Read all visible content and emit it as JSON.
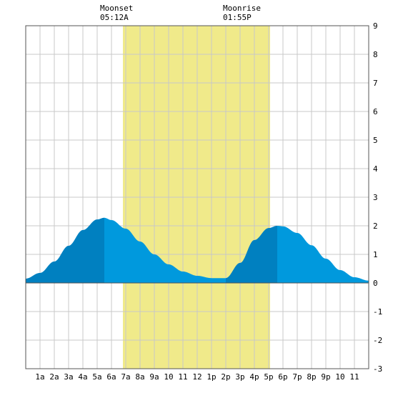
{
  "chart_data": {
    "type": "area",
    "title": "",
    "xlabel": "",
    "ylabel": "",
    "ylim": [
      -3,
      9
    ],
    "yticks": [
      9,
      8,
      7,
      6,
      5,
      4,
      3,
      2,
      1,
      0,
      -1,
      -2,
      -3
    ],
    "y_axis_side": "right",
    "xlim_hours": [
      0,
      24
    ],
    "xticks": [
      "1a",
      "2a",
      "3a",
      "4a",
      "5a",
      "6a",
      "7a",
      "8a",
      "9a",
      "10",
      "11",
      "12",
      "1p",
      "2p",
      "3p",
      "4p",
      "5p",
      "6p",
      "7p",
      "8p",
      "9p",
      "10",
      "11"
    ],
    "grid": true,
    "moon_shading": {
      "from_hour": 6.8,
      "to_hour": 17.1,
      "color": "#f0ea8a"
    },
    "moonset": {
      "label": "Moonset",
      "time": "05:12A",
      "hour": 5.2
    },
    "moonrise": {
      "label": "Moonrise",
      "time": "01:55P",
      "hour": 13.92
    },
    "series": [
      {
        "points": [
          [
            0,
            0.15
          ],
          [
            1,
            0.35
          ],
          [
            2,
            0.75
          ],
          [
            3,
            1.3
          ],
          [
            4,
            1.85
          ],
          [
            5,
            2.22
          ],
          [
            5.5,
            2.28
          ],
          [
            6,
            2.2
          ],
          [
            7,
            1.9
          ],
          [
            8,
            1.45
          ],
          [
            9,
            1.0
          ],
          [
            10,
            0.65
          ],
          [
            11,
            0.4
          ],
          [
            12,
            0.25
          ],
          [
            13,
            0.17
          ],
          [
            14,
            0.17
          ],
          [
            15,
            0.7
          ],
          [
            16,
            1.5
          ],
          [
            17,
            1.92
          ],
          [
            17.6,
            2.0
          ],
          [
            18,
            1.98
          ],
          [
            19,
            1.75
          ],
          [
            20,
            1.32
          ],
          [
            21,
            0.85
          ],
          [
            22,
            0.45
          ],
          [
            23,
            0.2
          ],
          [
            24,
            0.08
          ]
        ],
        "rising_periods": [
          [
            0,
            5.5
          ],
          [
            14,
            17.6
          ]
        ]
      }
    ],
    "colors": {
      "fill": "#0099dd",
      "rising_fill": "#0080c0",
      "grid": "#c8c8c8",
      "frame": "#555555",
      "zero_line": "#555555"
    }
  }
}
